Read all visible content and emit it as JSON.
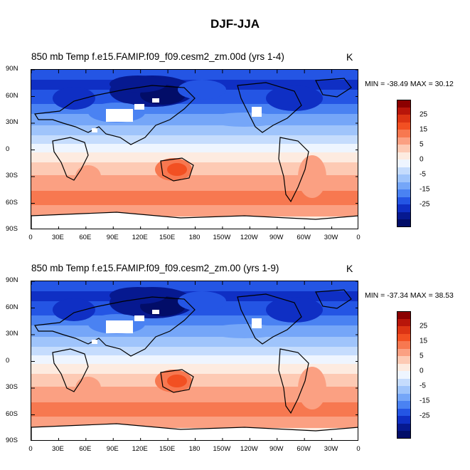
{
  "figure_title": "DJF-JJA",
  "panels": [
    {
      "title": "850 mb Temp f.e15.FAMIP.f09_f09.cesm2_zm.00d (yrs 1-4)",
      "units": "K",
      "minmax": "MIN = -38.49 MAX =  30.12"
    },
    {
      "title": "850 mb Temp f.e15.FAMIP.f09_f09.cesm2_zm.00 (yrs 1-9)",
      "units": "K",
      "minmax": "MIN = -37.34 MAX =  38.53"
    }
  ],
  "lat_labels": [
    "90N",
    "60N",
    "30N",
    "0",
    "30S",
    "60S",
    "90S"
  ],
  "lon_labels": [
    "0",
    "30E",
    "60E",
    "90E",
    "120E",
    "150E",
    "180",
    "150W",
    "120W",
    "90W",
    "60W",
    "30W",
    "0"
  ],
  "colorbar": {
    "labels": [
      "25",
      "15",
      "5",
      "0",
      "-5",
      "-15",
      "-25"
    ],
    "colors": [
      "#8b0000",
      "#b8150a",
      "#dc3414",
      "#f25022",
      "#f77850",
      "#fba082",
      "#fdcab4",
      "#fdebe0",
      "#eef5ff",
      "#c5dcfd",
      "#9fc4fb",
      "#75a6f8",
      "#4a82f2",
      "#2455e4",
      "#0f2fc4",
      "#061990",
      "#020d68"
    ]
  }
}
